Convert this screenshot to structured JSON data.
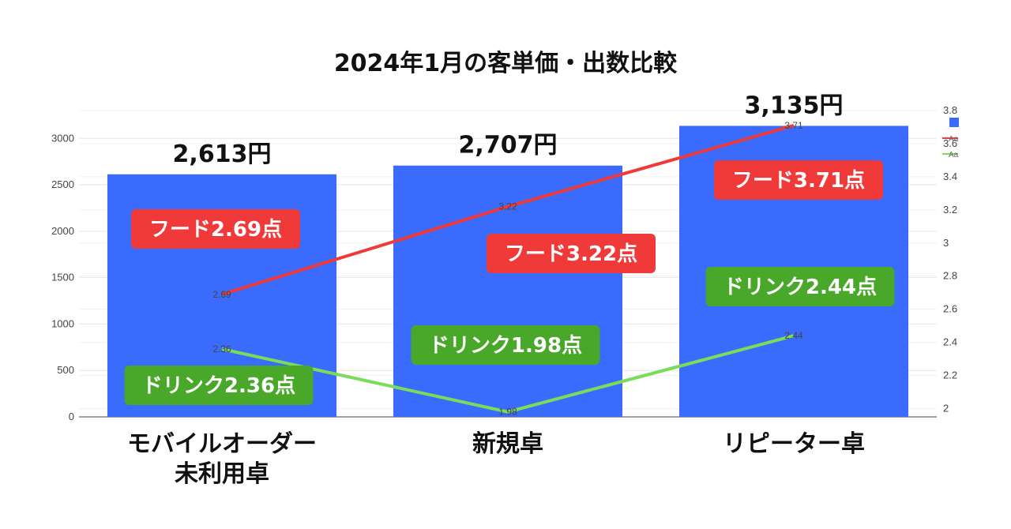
{
  "title": "2024年1月の客単価・出数比較",
  "chart_data": {
    "type": "bar",
    "categories": [
      [
        "モバイルオーダー",
        "未利用卓"
      ],
      [
        "新規卓"
      ],
      [
        "リピーター卓"
      ]
    ],
    "values": [
      2613,
      2707,
      3135
    ],
    "value_labels": [
      "2,613円",
      "2,707円",
      "3,135円"
    ],
    "bar_color": "#3a6bfc",
    "ylim_left": [
      0,
      3300
    ],
    "yticks_left": [
      "0",
      "500",
      "1000",
      "1500",
      "2000",
      "2500",
      "3000"
    ],
    "ylim_right": [
      1.95,
      3.8
    ],
    "yticks_right": [
      "2",
      "2.2",
      "2.4",
      "2.6",
      "2.8",
      "3",
      "3.2",
      "3.4",
      "3.6",
      "3.8"
    ],
    "grid": true,
    "legend_position": "top-right",
    "series": [
      {
        "values": [
          2.69,
          3.22,
          3.71
        ],
        "point_labels": [
          "2.69",
          "3.22",
          "3.71"
        ],
        "color": "#f03a3a",
        "axis": "right",
        "badges": [
          "フード2.69点",
          "フード3.22点",
          "フード3.71点"
        ],
        "legend_label": "Aa"
      },
      {
        "values": [
          2.36,
          1.98,
          2.44
        ],
        "point_labels": [
          "2.36",
          "1.98",
          "2.44"
        ],
        "color": "#7bdc5a",
        "axis": "right",
        "badges": [
          "ドリンク2.36点",
          "ドリンク1.98点",
          "ドリンク2.44点"
        ],
        "legend_label": "Aa"
      }
    ],
    "badge_colors": [
      "#f03a3a",
      "#49a82a"
    ]
  }
}
